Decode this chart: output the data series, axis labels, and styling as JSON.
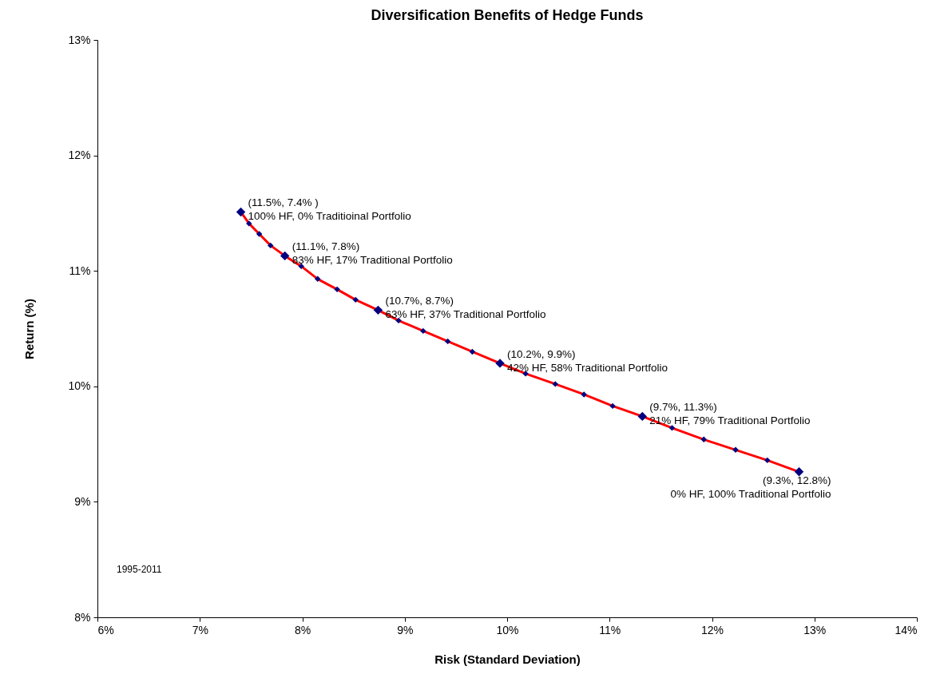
{
  "chart_data": {
    "type": "line",
    "title": "Diversification Benefits of Hedge Funds",
    "xlabel": "Risk (Standard Deviation)",
    "ylabel": "Return (%)",
    "xlim": [
      6,
      14
    ],
    "ylim": [
      8,
      13
    ],
    "xticks": [
      {
        "value": 6,
        "label": "6%"
      },
      {
        "value": 7,
        "label": "7%"
      },
      {
        "value": 8,
        "label": "8%"
      },
      {
        "value": 9,
        "label": "9%"
      },
      {
        "value": 10,
        "label": "10%"
      },
      {
        "value": 11,
        "label": "11%"
      },
      {
        "value": 12,
        "label": "12%"
      },
      {
        "value": 13,
        "label": "13%"
      },
      {
        "value": 14,
        "label": "14%"
      }
    ],
    "yticks": [
      {
        "value": 8,
        "label": "8%"
      },
      {
        "value": 9,
        "label": "9%"
      },
      {
        "value": 10,
        "label": "10%"
      },
      {
        "value": 11,
        "label": "11%"
      },
      {
        "value": 12,
        "label": "12%"
      },
      {
        "value": 13,
        "label": "13%"
      }
    ],
    "series": [
      {
        "color": "#ff0000",
        "marker": "none",
        "x": [
          7.4,
          7.48,
          7.58,
          7.69,
          7.83,
          7.99,
          8.15,
          8.34,
          8.52,
          8.74,
          8.94,
          9.18,
          9.42,
          9.66,
          9.93,
          10.18,
          10.47,
          10.75,
          11.03,
          11.32,
          11.61,
          11.92,
          12.23,
          12.54,
          12.85
        ],
        "values": [
          11.51,
          11.41,
          11.32,
          11.22,
          11.13,
          11.04,
          10.93,
          10.84,
          10.75,
          10.66,
          10.57,
          10.48,
          10.39,
          10.3,
          10.2,
          10.11,
          10.02,
          9.93,
          9.83,
          9.74,
          9.64,
          9.54,
          9.45,
          9.36,
          9.26
        ]
      },
      {
        "type": "scatter",
        "color": "#000080",
        "marker": "diamond",
        "x": [
          7.48,
          7.58,
          7.69,
          7.99,
          8.15,
          8.34,
          8.52,
          8.94,
          9.18,
          9.42,
          9.66,
          10.18,
          10.47,
          10.75,
          11.03,
          11.61,
          11.92,
          12.23,
          12.54
        ],
        "values": [
          11.41,
          11.32,
          11.22,
          11.04,
          10.93,
          10.84,
          10.75,
          10.57,
          10.48,
          10.39,
          10.3,
          10.11,
          10.02,
          9.93,
          9.83,
          9.64,
          9.54,
          9.45,
          9.36
        ]
      },
      {
        "type": "scatter",
        "color": "#000080",
        "marker": "diamond",
        "x": [
          7.4,
          7.83,
          8.74,
          9.93,
          11.32,
          12.85
        ],
        "values": [
          11.51,
          11.13,
          10.66,
          10.2,
          9.74,
          9.26
        ]
      }
    ],
    "annotations": [
      {
        "text": "(11.5%, 7.4% )\n100% HF, 0% Traditioinal Portfolio",
        "x": 7.4,
        "y": 11.51
      },
      {
        "text": "(11.1%, 7.8%)\n83% HF, 17% Traditional Portfolio",
        "x": 7.83,
        "y": 11.13
      },
      {
        "text": "(10.7%, 8.7%)\n63% HF, 37% Traditional Portfolio",
        "x": 8.74,
        "y": 10.66
      },
      {
        "text": "(10.2%, 9.9%)\n42% HF, 58% Traditional Portfolio",
        "x": 9.93,
        "y": 10.2
      },
      {
        "text": "(9.7%, 11.3%)\n21% HF, 79% Traditional Portfolio",
        "x": 11.32,
        "y": 9.74
      },
      {
        "text": "(9.3%, 12.8%)\n0% HF, 100% Traditional Portfolio",
        "x": 12.85,
        "y": 9.26
      },
      "1995-2011"
    ]
  }
}
